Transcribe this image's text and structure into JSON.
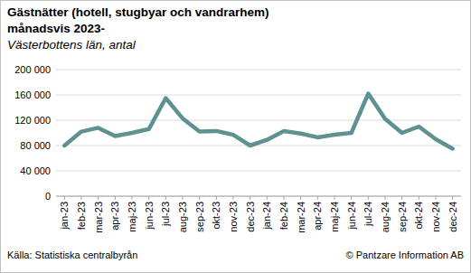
{
  "chart_data": {
    "type": "line",
    "title": "Gästnätter (hotell, stugbyar och vandrarhem) månadsvis 2023-",
    "subtitle": "Västerbottens län, antal",
    "source": "Källa: Statistiska centralbyrån",
    "credit": "© Pantzare Information AB",
    "categories": [
      "jan-23",
      "feb-23",
      "mar-23",
      "apr-23",
      "maj-23",
      "jun-23",
      "jul-23",
      "aug-23",
      "sep-23",
      "okt-23",
      "nov-23",
      "dec-23",
      "jan-24",
      "feb-24",
      "mar-24",
      "apr-24",
      "maj-24",
      "jun-24",
      "jul-24",
      "aug-24",
      "sep-24",
      "okt-24",
      "nov-24",
      "dec-24"
    ],
    "values": [
      80000,
      102000,
      108000,
      95000,
      100000,
      106000,
      155000,
      123000,
      102000,
      103000,
      97000,
      80000,
      89000,
      103000,
      99000,
      93000,
      97000,
      100000,
      162000,
      122000,
      100000,
      110000,
      90000,
      75000
    ],
    "color": "#5f9191",
    "ylim": [
      0,
      200000
    ],
    "yticks": [
      0,
      {
        "value": 40000,
        "label": "40 000"
      },
      {
        "value": 80000,
        "label": "80 000"
      },
      {
        "value": 120000,
        "label": "120 000"
      },
      {
        "value": 160000,
        "label": "160 000"
      },
      {
        "value": 200000,
        "label": "200 000"
      }
    ],
    "grid": true
  }
}
